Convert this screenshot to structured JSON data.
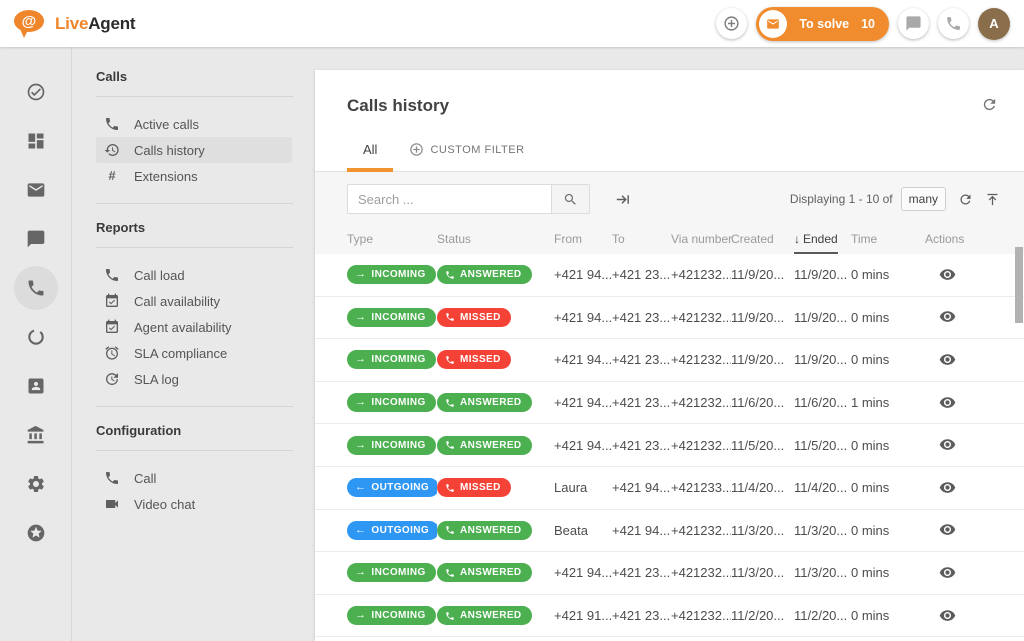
{
  "header": {
    "logo": {
      "at": "@",
      "live": "Live",
      "agent": "Agent"
    },
    "to_solve": {
      "label": "To solve",
      "count": "10",
      "icon": "mail-icon"
    },
    "add_button_icon": "plus-circle-icon",
    "chat_button_icon": "chat-icon",
    "phone_button_icon": "phone-icon",
    "avatar_initial": "A"
  },
  "nav_rail": {
    "items": [
      {
        "name": "resolve",
        "icon": "check-circle-icon",
        "active": false
      },
      {
        "name": "dashboard",
        "icon": "dashboard-icon",
        "active": false
      },
      {
        "name": "tickets",
        "icon": "mail-icon",
        "active": false
      },
      {
        "name": "chats",
        "icon": "chat-icon",
        "active": false
      },
      {
        "name": "calls",
        "icon": "phone-icon",
        "active": true
      },
      {
        "name": "social",
        "icon": "ring-icon",
        "active": false
      },
      {
        "name": "contacts",
        "icon": "contact-card-icon",
        "active": false
      },
      {
        "name": "company",
        "icon": "bank-icon",
        "active": false
      },
      {
        "name": "settings",
        "icon": "gear-icon",
        "active": false
      },
      {
        "name": "upgrade",
        "icon": "star-circle-icon",
        "active": false
      }
    ]
  },
  "sidebar": {
    "sections": [
      {
        "heading": "Calls",
        "items": [
          {
            "label": "Active calls",
            "icon": "phone-icon",
            "active": false
          },
          {
            "label": "Calls history",
            "icon": "history-icon",
            "active": true
          },
          {
            "label": "Extensions",
            "icon": "hash-icon",
            "active": false
          }
        ]
      },
      {
        "heading": "Reports",
        "items": [
          {
            "label": "Call load",
            "icon": "phone-icon",
            "active": false
          },
          {
            "label": "Call availability",
            "icon": "calendar-check-icon",
            "active": false
          },
          {
            "label": "Agent availability",
            "icon": "calendar-check-icon",
            "active": false
          },
          {
            "label": "SLA compliance",
            "icon": "alarm-icon",
            "active": false
          },
          {
            "label": "SLA log",
            "icon": "clock-log-icon",
            "active": false
          }
        ]
      },
      {
        "heading": "Configuration",
        "items": [
          {
            "label": "Call",
            "icon": "phone-icon",
            "active": false
          },
          {
            "label": "Video chat",
            "icon": "video-icon",
            "active": false
          }
        ]
      }
    ]
  },
  "main": {
    "title": "Calls history",
    "refresh_icon": "refresh-icon",
    "tabs": [
      {
        "label": "All",
        "active": true
      },
      {
        "label": "CUSTOM FILTER",
        "icon": "plus-circle-icon",
        "active": false
      }
    ],
    "toolbar": {
      "search_placeholder": "Search ...",
      "search_icon": "search-icon",
      "skip_icon": "arrow-to-bar-icon",
      "displaying_text": "Displaying 1 - 10 of",
      "displaying_count": "many",
      "refresh_icon": "refresh-icon",
      "scroll_top_icon": "upload-top-icon"
    },
    "table": {
      "columns": [
        "Type",
        "Status",
        "From",
        "To",
        "Via number",
        "Created",
        "Ended",
        "Time",
        "Actions"
      ],
      "sorted_column": "Ended",
      "sort_arrow": "↓",
      "badge_arrows": {
        "INCOMING": "→",
        "OUTGOING": "←"
      },
      "rows": [
        {
          "type": "INCOMING",
          "status": "ANSWERED",
          "from": "+421 94...",
          "to": "+421 23...",
          "via": "+421232...",
          "created": "11/9/20...",
          "ended": "11/9/20...",
          "time": "0 mins"
        },
        {
          "type": "INCOMING",
          "status": "MISSED",
          "from": "+421 94...",
          "to": "+421 23...",
          "via": "+421232...",
          "created": "11/9/20...",
          "ended": "11/9/20...",
          "time": "0 mins"
        },
        {
          "type": "INCOMING",
          "status": "MISSED",
          "from": "+421 94...",
          "to": "+421 23...",
          "via": "+421232...",
          "created": "11/9/20...",
          "ended": "11/9/20...",
          "time": "0 mins"
        },
        {
          "type": "INCOMING",
          "status": "ANSWERED",
          "from": "+421 94...",
          "to": "+421 23...",
          "via": "+421232...",
          "created": "11/6/20...",
          "ended": "11/6/20...",
          "time": "1 mins"
        },
        {
          "type": "INCOMING",
          "status": "ANSWERED",
          "from": "+421 94...",
          "to": "+421 23...",
          "via": "+421232...",
          "created": "11/5/20...",
          "ended": "11/5/20...",
          "time": "0 mins"
        },
        {
          "type": "OUTGOING",
          "status": "MISSED",
          "from": "Laura",
          "to": "+421 94...",
          "via": "+421233...",
          "created": "11/4/20...",
          "ended": "11/4/20...",
          "time": "0 mins"
        },
        {
          "type": "OUTGOING",
          "status": "ANSWERED",
          "from": "Beata",
          "to": "+421 94...",
          "via": "+421232...",
          "created": "11/3/20...",
          "ended": "11/3/20...",
          "time": "0 mins"
        },
        {
          "type": "INCOMING",
          "status": "ANSWERED",
          "from": "+421 94...",
          "to": "+421 23...",
          "via": "+421232...",
          "created": "11/3/20...",
          "ended": "11/3/20...",
          "time": "0 mins"
        },
        {
          "type": "INCOMING",
          "status": "ANSWERED",
          "from": "+421 91...",
          "to": "+421 23...",
          "via": "+421232...",
          "created": "11/2/20...",
          "ended": "11/2/20...",
          "time": "0 mins"
        }
      ]
    }
  },
  "colors": {
    "accent_orange": "#F08C2E",
    "badge_green": "#4CAF50",
    "badge_red": "#F44336",
    "badge_blue": "#2E96F3",
    "avatar_brown": "#8A6D4A"
  }
}
